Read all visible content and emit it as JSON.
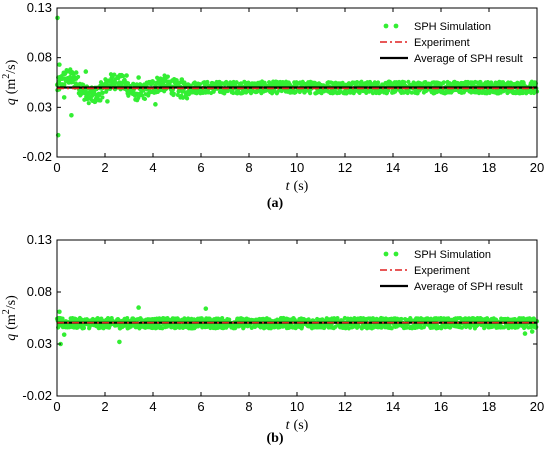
{
  "chart_data": [
    {
      "type": "scatter",
      "caption": "(a)",
      "xlabel": {
        "symbol": "t",
        "unit": "(s)"
      },
      "ylabel": {
        "symbol": "q",
        "unit_base": "(m",
        "unit_exp": "2",
        "unit_tail": "/s)"
      },
      "xlim": [
        0,
        20
      ],
      "ylim": [
        -0.02,
        0.13
      ],
      "xticks": [
        "0",
        "2",
        "4",
        "6",
        "8",
        "10",
        "12",
        "14",
        "16",
        "18",
        "20"
      ],
      "yticks": [
        "-0.02",
        "0.03",
        "0.08",
        "0.13"
      ],
      "grid": false,
      "legend_position": "top-right",
      "series": [
        {
          "name": "SPH Simulation",
          "kind": "points",
          "color": "#33ee33",
          "x_range": [
            0,
            20
          ],
          "mean": 0.05,
          "noise_band": 0.006,
          "transient": [
            {
              "x": 0.02,
              "y": 0.12
            },
            {
              "x": 0.05,
              "y": 0.002
            },
            {
              "x": 0.1,
              "y": 0.073
            },
            {
              "x": 0.3,
              "y": 0.04
            },
            {
              "x": 0.6,
              "y": 0.022
            },
            {
              "x": 0.8,
              "y": 0.065
            },
            {
              "x": 1.2,
              "y": 0.066
            },
            {
              "x": 1.8,
              "y": 0.037
            },
            {
              "x": 2.1,
              "y": 0.036
            },
            {
              "x": 2.9,
              "y": 0.062
            },
            {
              "x": 3.4,
              "y": 0.06
            },
            {
              "x": 4.1,
              "y": 0.033
            },
            {
              "x": 4.4,
              "y": 0.048
            },
            {
              "x": 5.2,
              "y": 0.058
            }
          ]
        },
        {
          "name": "Experiment",
          "kind": "dash-dot",
          "color": "#e02020",
          "y": 0.049
        },
        {
          "name": "Average of SPH result",
          "kind": "line",
          "color": "#000000",
          "y": 0.05
        }
      ]
    },
    {
      "type": "scatter",
      "caption": "(b)",
      "xlabel": {
        "symbol": "t",
        "unit": "(s)"
      },
      "ylabel": {
        "symbol": "q",
        "unit_base": "(m",
        "unit_exp": "2",
        "unit_tail": "/s)"
      },
      "xlim": [
        0,
        20
      ],
      "ylim": [
        -0.02,
        0.13
      ],
      "xticks": [
        "0",
        "2",
        "4",
        "6",
        "8",
        "10",
        "12",
        "14",
        "16",
        "18",
        "20"
      ],
      "yticks": [
        "-0.02",
        "0.03",
        "0.08",
        "0.13"
      ],
      "grid": false,
      "legend_position": "top-right",
      "series": [
        {
          "name": "SPH Simulation",
          "kind": "points",
          "color": "#33ee33",
          "x_range": [
            0,
            20
          ],
          "mean": 0.05,
          "noise_band": 0.005,
          "transient": [
            {
              "x": 0.1,
              "y": 0.061
            },
            {
              "x": 0.15,
              "y": 0.03
            },
            {
              "x": 0.3,
              "y": 0.039
            },
            {
              "x": 2.6,
              "y": 0.032
            },
            {
              "x": 3.4,
              "y": 0.065
            },
            {
              "x": 6.2,
              "y": 0.064
            },
            {
              "x": 19.5,
              "y": 0.04
            },
            {
              "x": 19.8,
              "y": 0.042
            }
          ]
        },
        {
          "name": "Experiment",
          "kind": "dash-dot",
          "color": "#e02020",
          "y": 0.0505
        },
        {
          "name": "Average of SPH result",
          "kind": "line",
          "color": "#000000",
          "y": 0.0505
        }
      ]
    }
  ]
}
